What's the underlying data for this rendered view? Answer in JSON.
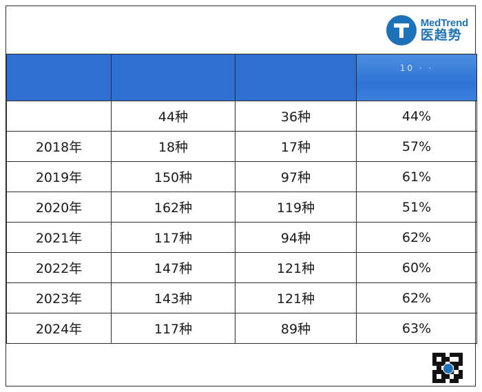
{
  "brand": {
    "logo_en": "MedTrend",
    "logo_cn": "医趋势",
    "accent_color": "#1e72b8",
    "header_color": "#2f6fd0"
  },
  "table": {
    "header_mark": "10 · ·",
    "rows": [
      {
        "year": "",
        "c2": "44种",
        "c3": "36种",
        "c4": "44%"
      },
      {
        "year": "2018年",
        "c2": "18种",
        "c3": "17种",
        "c4": "57%"
      },
      {
        "year": "2019年",
        "c2": "150种",
        "c3": "97种",
        "c4": "61%"
      },
      {
        "year": "2020年",
        "c2": "162种",
        "c3": "119种",
        "c4": "51%"
      },
      {
        "year": "2021年",
        "c2": "117种",
        "c3": "94种",
        "c4": "62%"
      },
      {
        "year": "2022年",
        "c2": "147种",
        "c3": "121种",
        "c4": "60%"
      },
      {
        "year": "2023年",
        "c2": "143种",
        "c3": "121种",
        "c4": "62%"
      },
      {
        "year": "2024年",
        "c2": "117种",
        "c3": "89种",
        "c4": "63%"
      }
    ]
  },
  "footer": {
    "qr_icon": "qr-code-icon"
  }
}
